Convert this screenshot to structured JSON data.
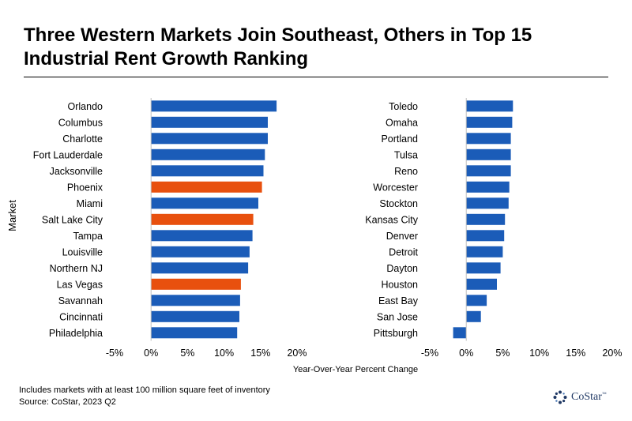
{
  "title": {
    "line1": "Three Western Markets Join Southeast, Others in Top 15",
    "line2": "Industrial Rent Growth Ranking"
  },
  "footnote": {
    "line1": "Includes markets with at least 100 million square feet of inventory",
    "line2": "Source: CoStar, 2023 Q2"
  },
  "logo": {
    "text": "CoStar",
    "tm": "™",
    "icon": "costar-logo-icon"
  },
  "colors": {
    "default_bar": "#1b5cb8",
    "highlight_bar": "#e8500e",
    "axis": "#bfbfbf"
  },
  "chart_data": [
    {
      "type": "bar",
      "orientation": "horizontal",
      "ylabel": "Market",
      "xlabel": "Year-Over-Year Percent Change",
      "xlim": [
        -5,
        20
      ],
      "xticks": [
        "-5%",
        "0%",
        "5%",
        "10%",
        "15%",
        "20%"
      ],
      "grid": false,
      "categories": [
        "Orlando",
        "Columbus",
        "Charlotte",
        "Fort Lauderdale",
        "Jacksonville",
        "Phoenix",
        "Miami",
        "Salt Lake City",
        "Tampa",
        "Louisville",
        "Northern NJ",
        "Las Vegas",
        "Savannah",
        "Cincinnati",
        "Philadelphia"
      ],
      "values": [
        17.2,
        16.0,
        16.0,
        15.6,
        15.4,
        15.2,
        14.7,
        14.0,
        13.9,
        13.5,
        13.3,
        12.3,
        12.2,
        12.1,
        11.8
      ],
      "highlight": [
        "Phoenix",
        "Salt Lake City",
        "Las Vegas"
      ]
    },
    {
      "type": "bar",
      "orientation": "horizontal",
      "xlabel": "Year-Over-Year Percent Change",
      "xlim": [
        -5,
        20
      ],
      "xticks": [
        "-5%",
        "0%",
        "5%",
        "10%",
        "15%",
        "20%"
      ],
      "grid": false,
      "categories": [
        "Toledo",
        "Omaha",
        "Portland",
        "Tulsa",
        "Reno",
        "Worcester",
        "Stockton",
        "Kansas City",
        "Denver",
        "Detroit",
        "Dayton",
        "Houston",
        "East Bay",
        "San Jose",
        "Pittsburgh"
      ],
      "values": [
        6.4,
        6.3,
        6.1,
        6.1,
        6.1,
        5.9,
        5.8,
        5.3,
        5.2,
        5.0,
        4.7,
        4.2,
        2.8,
        2.0,
        -1.8
      ],
      "highlight": []
    }
  ]
}
